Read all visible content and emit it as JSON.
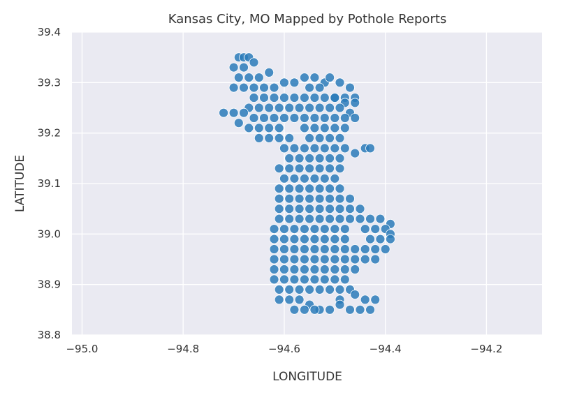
{
  "chart_data": {
    "type": "scatter",
    "title": "Kansas City, MO Mapped by Pothole Reports",
    "xlabel": "LONGITUDE",
    "ylabel": "LATITUDE",
    "xlim": [
      -95.02,
      -94.09
    ],
    "ylim": [
      38.8,
      39.4
    ],
    "xticks": [
      -95.0,
      -94.8,
      -94.6,
      -94.4,
      -94.2
    ],
    "xtick_labels": [
      "−95.0",
      "−94.8",
      "−94.6",
      "−94.4",
      "−94.2"
    ],
    "yticks": [
      38.8,
      38.9,
      39.0,
      39.1,
      39.2,
      39.3,
      39.4
    ],
    "ytick_labels": [
      "38.8",
      "38.9",
      "39.0",
      "39.1",
      "39.2",
      "39.3",
      "39.4"
    ],
    "grid": true,
    "background_color": "#eaeaf2",
    "grid_color": "#ffffff",
    "point_color": "#2b7bba",
    "point_edge_color": "#ffffff",
    "series": [
      {
        "x": [
          -94.69,
          -94.68,
          -94.67,
          -94.7,
          -94.68,
          -94.66,
          -94.69,
          -94.67,
          -94.65,
          -94.63,
          -94.7,
          -94.68,
          -94.66,
          -94.64,
          -94.62,
          -94.6,
          -94.58,
          -94.56,
          -94.54,
          -94.52,
          -94.55,
          -94.53,
          -94.51,
          -94.49,
          -94.47,
          -94.5,
          -94.48,
          -94.46,
          -94.66,
          -94.64,
          -94.62,
          -94.6,
          -94.58,
          -94.56,
          -94.54,
          -94.52,
          -94.5,
          -94.48,
          -94.46,
          -94.67,
          -94.65,
          -94.63,
          -94.61,
          -94.59,
          -94.57,
          -94.55,
          -94.53,
          -94.51,
          -94.49,
          -94.47,
          -94.72,
          -94.7,
          -94.68,
          -94.66,
          -94.64,
          -94.62,
          -94.6,
          -94.58,
          -94.56,
          -94.54,
          -94.52,
          -94.5,
          -94.48,
          -94.46,
          -94.69,
          -94.67,
          -94.65,
          -94.63,
          -94.61,
          -94.56,
          -94.54,
          -94.52,
          -94.5,
          -94.48,
          -94.65,
          -94.63,
          -94.61,
          -94.59,
          -94.55,
          -94.53,
          -94.51,
          -94.49,
          -94.6,
          -94.58,
          -94.56,
          -94.54,
          -94.52,
          -94.5,
          -94.48,
          -94.59,
          -94.57,
          -94.55,
          -94.53,
          -94.51,
          -94.49,
          -94.46,
          -94.44,
          -94.43,
          -94.61,
          -94.59,
          -94.57,
          -94.55,
          -94.53,
          -94.51,
          -94.49,
          -94.6,
          -94.58,
          -94.56,
          -94.54,
          -94.52,
          -94.5,
          -94.61,
          -94.59,
          -94.57,
          -94.55,
          -94.53,
          -94.51,
          -94.49,
          -94.61,
          -94.59,
          -94.57,
          -94.55,
          -94.53,
          -94.51,
          -94.49,
          -94.47,
          -94.61,
          -94.59,
          -94.57,
          -94.55,
          -94.53,
          -94.51,
          -94.49,
          -94.47,
          -94.45,
          -94.61,
          -94.59,
          -94.57,
          -94.55,
          -94.53,
          -94.51,
          -94.49,
          -94.47,
          -94.45,
          -94.43,
          -94.41,
          -94.39,
          -94.62,
          -94.6,
          -94.58,
          -94.56,
          -94.54,
          -94.52,
          -94.5,
          -94.48,
          -94.44,
          -94.42,
          -94.4,
          -94.39,
          -94.62,
          -94.6,
          -94.58,
          -94.56,
          -94.54,
          -94.52,
          -94.5,
          -94.48,
          -94.43,
          -94.41,
          -94.39,
          -94.62,
          -94.6,
          -94.58,
          -94.56,
          -94.54,
          -94.52,
          -94.5,
          -94.48,
          -94.46,
          -94.44,
          -94.42,
          -94.4,
          -94.62,
          -94.6,
          -94.58,
          -94.56,
          -94.54,
          -94.52,
          -94.5,
          -94.48,
          -94.46,
          -94.44,
          -94.42,
          -94.62,
          -94.6,
          -94.58,
          -94.56,
          -94.54,
          -94.52,
          -94.5,
          -94.48,
          -94.46,
          -94.62,
          -94.6,
          -94.58,
          -94.56,
          -94.54,
          -94.52,
          -94.5,
          -94.48,
          -94.61,
          -94.59,
          -94.57,
          -94.55,
          -94.53,
          -94.51,
          -94.49,
          -94.47,
          -94.61,
          -94.59,
          -94.57,
          -94.55,
          -94.53,
          -94.49,
          -94.46,
          -94.44,
          -94.58,
          -94.56,
          -94.54,
          -94.51,
          -94.49,
          -94.47,
          -94.45,
          -94.43,
          -94.42
        ],
        "y": [
          39.35,
          39.35,
          39.35,
          39.33,
          39.33,
          39.34,
          39.31,
          39.31,
          39.31,
          39.32,
          39.29,
          39.29,
          39.29,
          39.29,
          39.29,
          39.3,
          39.3,
          39.31,
          39.31,
          39.3,
          39.29,
          39.29,
          39.31,
          39.3,
          39.29,
          39.27,
          39.27,
          39.27,
          39.27,
          39.27,
          39.27,
          39.27,
          39.27,
          39.27,
          39.27,
          39.27,
          39.27,
          39.26,
          39.26,
          39.25,
          39.25,
          39.25,
          39.25,
          39.25,
          39.25,
          39.25,
          39.25,
          39.25,
          39.25,
          39.24,
          39.24,
          39.24,
          39.24,
          39.23,
          39.23,
          39.23,
          39.23,
          39.23,
          39.23,
          39.23,
          39.23,
          39.23,
          39.23,
          39.23,
          39.22,
          39.21,
          39.21,
          39.21,
          39.21,
          39.21,
          39.21,
          39.21,
          39.21,
          39.21,
          39.19,
          39.19,
          39.19,
          39.19,
          39.19,
          39.19,
          39.19,
          39.19,
          39.17,
          39.17,
          39.17,
          39.17,
          39.17,
          39.17,
          39.17,
          39.15,
          39.15,
          39.15,
          39.15,
          39.15,
          39.15,
          39.16,
          39.17,
          39.17,
          39.13,
          39.13,
          39.13,
          39.13,
          39.13,
          39.13,
          39.13,
          39.11,
          39.11,
          39.11,
          39.11,
          39.11,
          39.11,
          39.09,
          39.09,
          39.09,
          39.09,
          39.09,
          39.09,
          39.09,
          39.07,
          39.07,
          39.07,
          39.07,
          39.07,
          39.07,
          39.07,
          39.07,
          39.05,
          39.05,
          39.05,
          39.05,
          39.05,
          39.05,
          39.05,
          39.05,
          39.05,
          39.03,
          39.03,
          39.03,
          39.03,
          39.03,
          39.03,
          39.03,
          39.03,
          39.03,
          39.03,
          39.03,
          39.02,
          39.01,
          39.01,
          39.01,
          39.01,
          39.01,
          39.01,
          39.01,
          39.01,
          39.01,
          39.01,
          39.01,
          39.0,
          38.99,
          38.99,
          38.99,
          38.99,
          38.99,
          38.99,
          38.99,
          38.99,
          38.99,
          38.99,
          38.99,
          38.97,
          38.97,
          38.97,
          38.97,
          38.97,
          38.97,
          38.97,
          38.97,
          38.97,
          38.97,
          38.97,
          38.97,
          38.95,
          38.95,
          38.95,
          38.95,
          38.95,
          38.95,
          38.95,
          38.95,
          38.95,
          38.95,
          38.95,
          38.93,
          38.93,
          38.93,
          38.93,
          38.93,
          38.93,
          38.93,
          38.93,
          38.93,
          38.91,
          38.91,
          38.91,
          38.91,
          38.91,
          38.91,
          38.91,
          38.91,
          38.89,
          38.89,
          38.89,
          38.89,
          38.89,
          38.89,
          38.89,
          38.89,
          38.87,
          38.87,
          38.87,
          38.86,
          38.85,
          38.87,
          38.88,
          38.87,
          38.85,
          38.85,
          38.85,
          38.85,
          38.86,
          38.85,
          38.85,
          38.85,
          38.87
        ]
      }
    ]
  }
}
